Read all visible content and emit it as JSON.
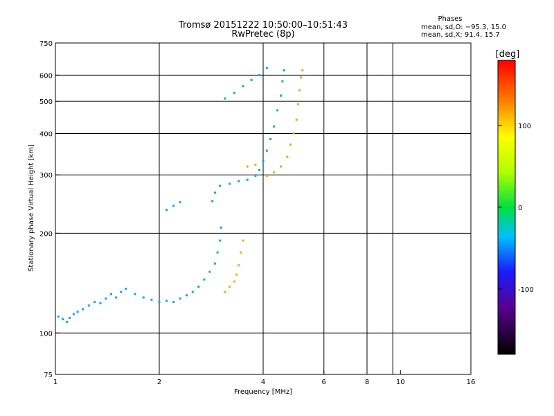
{
  "chart_data": {
    "type": "scatter",
    "title": "Tromsø 20151222 10:50:00–10:51:43",
    "subtitle": "RwPretec (8p)",
    "stats": {
      "heading": "Phases",
      "line1": "mean, sd,O: −95.3, 15.0",
      "line2": "mean, sd,X:  91.4, 15.7"
    },
    "xlabel": "Frequency [MHz]",
    "ylabel": "Stationary phase Virtual Height [km]",
    "x_scale": "log",
    "y_scale": "log",
    "xlim": [
      1,
      16
    ],
    "ylim": [
      75,
      750
    ],
    "x_ticks": [
      {
        "v": 1,
        "label": "1"
      },
      {
        "v": 2,
        "label": "2"
      },
      {
        "v": 4,
        "label": "4"
      },
      {
        "v": 6,
        "label": "6"
      },
      {
        "v": 8,
        "label": "8"
      },
      {
        "v": 10,
        "label": "10"
      },
      {
        "v": 16,
        "label": "16"
      }
    ],
    "x_grid": [
      2,
      4,
      6,
      8,
      9.5
    ],
    "y_ticks": [
      {
        "v": 75,
        "label": "75"
      },
      {
        "v": 100,
        "label": "100"
      },
      {
        "v": 200,
        "label": "200"
      },
      {
        "v": 300,
        "label": "300"
      },
      {
        "v": 400,
        "label": "400"
      },
      {
        "v": 500,
        "label": "500"
      },
      {
        "v": 600,
        "label": "600"
      },
      {
        "v": 750,
        "label": "750"
      }
    ],
    "y_grid": [
      100,
      200,
      300,
      400,
      500,
      600
    ],
    "colorbar": {
      "label": "[deg]",
      "range": [
        -180,
        180
      ],
      "ticks": [
        {
          "v": 100,
          "label": "100"
        },
        {
          "v": 0,
          "label": "0"
        },
        {
          "v": -100,
          "label": "-100"
        }
      ]
    },
    "series": [
      {
        "mode": "O",
        "phase_deg": -95,
        "points": [
          [
            1.02,
            112
          ],
          [
            1.05,
            110
          ],
          [
            1.08,
            108
          ],
          [
            1.1,
            111
          ],
          [
            1.13,
            114
          ],
          [
            1.16,
            116
          ],
          [
            1.2,
            118
          ],
          [
            1.25,
            121
          ],
          [
            1.3,
            124
          ],
          [
            1.35,
            123
          ],
          [
            1.4,
            127
          ],
          [
            1.45,
            131
          ],
          [
            1.5,
            128
          ],
          [
            1.55,
            133
          ],
          [
            1.6,
            136
          ],
          [
            1.7,
            131
          ],
          [
            1.8,
            128
          ],
          [
            1.9,
            126
          ],
          [
            2.0,
            124
          ],
          [
            2.1,
            125
          ],
          [
            2.2,
            124
          ],
          [
            2.3,
            127
          ],
          [
            2.4,
            130
          ],
          [
            2.5,
            133
          ],
          [
            2.6,
            138
          ],
          [
            2.7,
            145
          ],
          [
            2.8,
            153
          ],
          [
            2.9,
            162
          ],
          [
            2.95,
            175
          ],
          [
            3.0,
            190
          ],
          [
            3.02,
            208
          ],
          [
            2.85,
            250
          ],
          [
            2.9,
            265
          ],
          [
            3.0,
            278
          ],
          [
            3.2,
            282
          ],
          [
            3.4,
            287
          ],
          [
            3.6,
            290
          ],
          [
            3.8,
            298
          ],
          [
            3.9,
            310
          ],
          [
            4.0,
            330
          ],
          [
            4.1,
            355
          ],
          [
            4.2,
            385
          ],
          [
            4.3,
            420
          ],
          [
            4.4,
            470
          ],
          [
            4.5,
            520
          ],
          [
            4.55,
            575
          ],
          [
            4.6,
            620
          ],
          [
            3.1,
            510
          ],
          [
            3.3,
            530
          ],
          [
            3.5,
            555
          ],
          [
            3.7,
            580
          ],
          [
            3.9,
            600
          ],
          [
            4.1,
            630
          ],
          [
            2.1,
            235
          ],
          [
            2.2,
            242
          ],
          [
            2.3,
            248
          ]
        ]
      },
      {
        "mode": "X",
        "phase_deg": 95,
        "points": [
          [
            3.1,
            133
          ],
          [
            3.2,
            138
          ],
          [
            3.3,
            143
          ],
          [
            3.35,
            150
          ],
          [
            3.4,
            160
          ],
          [
            3.45,
            175
          ],
          [
            3.5,
            190
          ],
          [
            3.6,
            318
          ],
          [
            3.8,
            322
          ],
          [
            4.1,
            298
          ],
          [
            4.3,
            305
          ],
          [
            4.5,
            318
          ],
          [
            4.7,
            340
          ],
          [
            4.8,
            370
          ],
          [
            4.9,
            400
          ],
          [
            5.0,
            440
          ],
          [
            5.05,
            490
          ],
          [
            5.1,
            540
          ],
          [
            5.15,
            590
          ],
          [
            5.2,
            620
          ]
        ]
      }
    ],
    "annotations": []
  }
}
